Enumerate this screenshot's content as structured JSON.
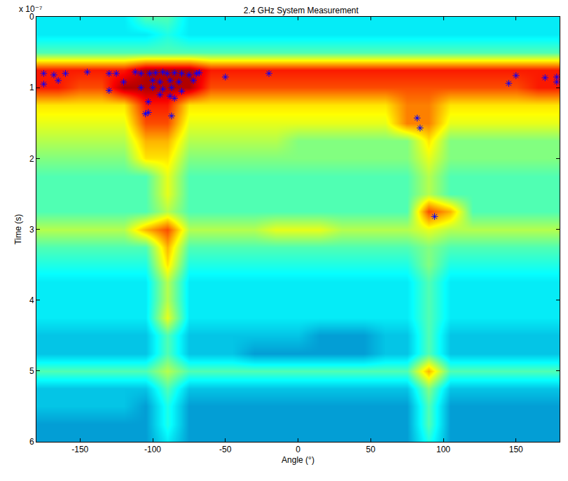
{
  "chart_data": {
    "type": "heatmap",
    "title": "2.4 GHz System Measurement",
    "x_label": "Angle (°)",
    "y_label": "Time (s)",
    "annotations": [
      "x 10⁻⁷"
    ],
    "color": "jet",
    "xlim": [
      -180,
      180
    ],
    "xticks": [
      -150,
      -100,
      -50,
      0,
      50,
      100,
      150
    ],
    "ylim": [
      6e-07,
      0
    ],
    "yticks": [
      {
        "value": 0,
        "label": "0"
      },
      {
        "value": 1e-07,
        "label": "1"
      },
      {
        "value": 2e-07,
        "label": "2"
      },
      {
        "value": 3e-07,
        "label": "3"
      },
      {
        "value": 4e-07,
        "label": "4"
      },
      {
        "value": 5e-07,
        "label": "5"
      },
      {
        "value": 6e-07,
        "label": "6"
      }
    ],
    "grid": false,
    "cells": {
      "x": [
        -180,
        -165,
        -150,
        -135,
        -120,
        -105,
        -90,
        -75,
        -60,
        -45,
        -30,
        -15,
        0,
        15,
        30,
        45,
        60,
        75,
        90,
        105,
        120,
        135,
        150,
        165,
        180
      ],
      "y": [
        0,
        2.5e-08,
        5e-08,
        7.5e-08,
        1e-07,
        1.25e-07,
        1.5e-07,
        1.75e-07,
        2e-07,
        2.25e-07,
        2.5e-07,
        2.75e-07,
        3e-07,
        3.25e-07,
        3.5e-07,
        3.75e-07,
        4e-07,
        4.25e-07,
        4.5e-07,
        4.75e-07,
        5e-07,
        5.25e-07,
        5.5e-07,
        5.75e-07,
        6e-07
      ],
      "zlim": [
        0,
        10
      ],
      "z": [
        [
          3.5,
          3.5,
          3.5,
          3.5,
          3.5,
          4.5,
          4.5,
          3.5,
          3.5,
          3.5,
          3.5,
          3.5,
          3.5,
          3.5,
          3.5,
          3.5,
          3.5,
          3.5,
          3.5,
          3.5,
          3.5,
          3.5,
          3.5,
          3.5,
          3.5
        ],
        [
          3.5,
          3.5,
          3.5,
          3.5,
          3.5,
          3.5,
          4,
          3.5,
          3.5,
          3.5,
          3.5,
          3.5,
          3.5,
          3.5,
          3.5,
          3.5,
          3.5,
          3.5,
          3.5,
          3.5,
          3.5,
          3.5,
          3.5,
          3.5,
          3.5
        ],
        [
          4.5,
          4.5,
          4.5,
          4.5,
          4.5,
          4.5,
          4.5,
          4.5,
          4.5,
          4.5,
          4.5,
          4.5,
          4.5,
          4.5,
          4.5,
          4.5,
          4.5,
          4.5,
          4.5,
          4.5,
          4.5,
          4.5,
          4.5,
          4.5,
          4.5
        ],
        [
          8.5,
          8.5,
          8.5,
          8.5,
          8.5,
          9.5,
          9.5,
          9.5,
          8.5,
          8.5,
          8.5,
          8.5,
          8.5,
          8.5,
          8.5,
          8.5,
          8.5,
          8.5,
          8.5,
          8.5,
          8.5,
          8.5,
          8.5,
          8.5,
          8.5
        ],
        [
          8.5,
          8.5,
          8,
          8,
          9.5,
          9.5,
          9.5,
          9.5,
          8,
          8,
          8,
          8,
          8,
          8,
          8,
          8,
          8,
          8,
          8,
          8,
          8,
          8,
          8,
          8.5,
          8.5
        ],
        [
          6.5,
          6.5,
          6.5,
          6.5,
          6.5,
          8.5,
          8.5,
          6.5,
          6.5,
          6.5,
          6.5,
          6.5,
          6.5,
          6.5,
          6.5,
          6.5,
          6.5,
          7.5,
          7.5,
          6.5,
          6.5,
          6.5,
          6.5,
          6.5,
          6.5
        ],
        [
          6,
          6,
          6,
          6,
          6,
          8,
          8,
          6,
          6,
          6,
          6,
          6,
          6,
          6,
          6,
          6,
          6,
          7.5,
          7.5,
          6,
          6,
          6,
          6,
          6,
          6
        ],
        [
          5.5,
          5.5,
          5.5,
          5.5,
          5.5,
          7,
          7,
          5.5,
          5.5,
          5.5,
          5.5,
          5.5,
          5,
          5,
          5,
          5,
          5,
          5,
          6.5,
          5,
          5,
          5,
          5,
          5,
          5
        ],
        [
          5,
          5,
          5,
          5,
          5,
          6.5,
          6.5,
          5,
          5,
          5,
          5,
          5,
          5,
          5,
          5,
          5,
          5,
          5,
          6,
          5,
          5,
          5,
          5,
          5,
          5
        ],
        [
          4.5,
          4.5,
          4.5,
          4.5,
          4.5,
          4.5,
          6,
          4.5,
          4.5,
          4.5,
          4.5,
          4.5,
          4.5,
          4.5,
          4.5,
          4.5,
          4.5,
          4.5,
          5.5,
          4.5,
          4.5,
          4.5,
          4.5,
          4.5,
          4.5
        ],
        [
          4.5,
          4.5,
          4.5,
          4.5,
          4.5,
          4.5,
          6,
          4.5,
          4.5,
          4.5,
          4.5,
          4.5,
          4.5,
          4.5,
          4.5,
          4.5,
          4.5,
          4.5,
          5.5,
          4.5,
          4.5,
          4.5,
          4.5,
          4.5,
          4.5
        ],
        [
          4.5,
          4.5,
          4.5,
          4.5,
          4.5,
          4.5,
          5.5,
          4.5,
          4.5,
          4.5,
          4.5,
          4.5,
          4.5,
          4.5,
          4.5,
          4.5,
          4.5,
          4.5,
          8,
          7,
          4.5,
          4.5,
          4.5,
          4.5,
          4.5
        ],
        [
          5.5,
          5.5,
          5.5,
          5.5,
          5.5,
          7,
          8,
          5.5,
          5.5,
          5.5,
          5.5,
          6,
          6,
          6,
          5.5,
          5.5,
          5.5,
          5.5,
          6,
          5.5,
          5.5,
          5.5,
          5.5,
          5.5,
          5.5
        ],
        [
          4.5,
          4.5,
          4.5,
          4.5,
          4.5,
          4.5,
          7,
          4.5,
          4.5,
          4.5,
          4.5,
          4.5,
          4.5,
          4.5,
          4.5,
          4.5,
          4.5,
          4.5,
          5,
          4.5,
          4.5,
          4.5,
          4.5,
          4.5,
          4.5
        ],
        [
          4,
          4,
          4,
          4,
          4,
          4,
          6.5,
          4,
          4,
          4,
          4,
          4,
          4,
          4,
          4,
          4,
          4,
          4,
          5,
          4,
          4,
          4,
          4,
          4,
          4
        ],
        [
          3.5,
          3.5,
          3.5,
          3.5,
          3.5,
          3.5,
          5.5,
          3.5,
          3.5,
          3.5,
          3.5,
          3.5,
          3.5,
          3.5,
          3.5,
          3.5,
          3.5,
          3.5,
          4.5,
          3.5,
          3.5,
          3.5,
          3.5,
          3.5,
          3.5
        ],
        [
          3.5,
          3.5,
          3.5,
          3.5,
          3.5,
          3.5,
          5.5,
          3.5,
          3.5,
          3.5,
          3.5,
          3.5,
          3.5,
          3.5,
          3.5,
          3.5,
          3.5,
          3.5,
          4.5,
          3.5,
          3.5,
          3.5,
          3.5,
          3.5,
          3.5
        ],
        [
          3.5,
          3.5,
          3.5,
          3.5,
          3.5,
          3.5,
          6,
          3.5,
          3.5,
          3.5,
          3.5,
          3.5,
          3.5,
          3.5,
          3.5,
          3.5,
          3.5,
          3.5,
          4.5,
          3.5,
          3.5,
          3.5,
          3.5,
          3.5,
          3.5
        ],
        [
          3,
          3,
          3,
          3,
          3,
          3,
          4.5,
          3,
          3,
          3,
          3,
          3,
          3,
          2.5,
          2.5,
          2.5,
          3,
          3,
          4.5,
          3,
          3,
          3,
          3,
          3,
          3
        ],
        [
          3,
          3,
          3,
          3,
          3,
          3,
          4.5,
          3,
          3,
          3,
          2.5,
          2.5,
          2.5,
          2.5,
          2.5,
          2.5,
          3,
          3,
          4.5,
          3,
          3,
          3,
          3,
          3,
          3
        ],
        [
          4.5,
          4.5,
          4.5,
          4.5,
          4.5,
          4.5,
          5.5,
          4.5,
          4.5,
          4.5,
          4.5,
          4.5,
          4.5,
          4.5,
          4.5,
          4.5,
          4.5,
          4.5,
          7,
          4.5,
          4.5,
          4.5,
          4.5,
          4.5,
          4.5
        ],
        [
          3,
          3,
          3,
          3,
          3,
          3,
          4.5,
          3,
          3,
          3,
          3,
          3,
          3,
          3,
          3,
          3,
          3,
          3,
          5,
          3,
          3,
          3,
          3,
          3,
          3
        ],
        [
          3,
          3,
          3,
          3,
          3,
          2.5,
          4,
          2.5,
          2.5,
          2.5,
          2.5,
          2.5,
          2.5,
          2.5,
          2.5,
          2.5,
          2.5,
          2.5,
          4.5,
          2.5,
          2.5,
          2.5,
          2.5,
          2.5,
          2.5
        ],
        [
          2.5,
          2.5,
          2.5,
          2.5,
          2.5,
          2.5,
          4,
          2.5,
          2.5,
          2.5,
          2.5,
          2.5,
          2.5,
          2.5,
          2.5,
          2.5,
          2.5,
          2.5,
          4.5,
          2.5,
          2.5,
          2.5,
          2.5,
          2.5,
          2.5
        ],
        [
          2.5,
          2.5,
          2.5,
          2.5,
          2.5,
          2.5,
          3.5,
          2.5,
          2.5,
          2.5,
          2.5,
          2.5,
          2.5,
          2.5,
          2.5,
          2.5,
          2.5,
          2.5,
          4,
          2.5,
          2.5,
          2.5,
          2.5,
          2.5,
          2.5
        ]
      ]
    },
    "series": [
      {
        "type": "scatter",
        "color": "#0000ff",
        "marker": "asterisk",
        "x": [
          -175,
          -168,
          -160,
          -145,
          -130,
          -125,
          -112,
          -108,
          -102,
          -98,
          -93,
          -90,
          -85,
          -80,
          -75,
          -70,
          -68,
          -20,
          150,
          170,
          178,
          -175,
          -165,
          -120,
          -100,
          -95,
          -88,
          -82,
          -72,
          -50,
          145,
          178,
          -130,
          -108,
          -100,
          -93,
          -87,
          -80,
          -95,
          -88,
          -85,
          -103,
          -105,
          -103,
          -87,
          82,
          84,
          94
        ],
        "values": [
          8e-08,
          8.2e-08,
          8e-08,
          7.8e-08,
          8e-08,
          8e-08,
          7.8e-08,
          8e-08,
          8e-08,
          7.9e-08,
          7.8e-08,
          8e-08,
          7.9e-08,
          8e-08,
          8.2e-08,
          8e-08,
          7.9e-08,
          8e-08,
          8.3e-08,
          8.6e-08,
          8.5e-08,
          9.5e-08,
          9e-08,
          9.2e-08,
          9e-08,
          9.2e-08,
          9e-08,
          9.2e-08,
          9e-08,
          8.5e-08,
          9.4e-08,
          9.2e-08,
          1.04e-07,
          1e-07,
          1e-07,
          1.02e-07,
          1e-07,
          1.05e-07,
          1.1e-07,
          1.12e-07,
          1.15e-07,
          1.2e-07,
          1.37e-07,
          1.35e-07,
          1.4e-07,
          1.43e-07,
          1.57e-07,
          2.82e-07
        ]
      }
    ]
  }
}
